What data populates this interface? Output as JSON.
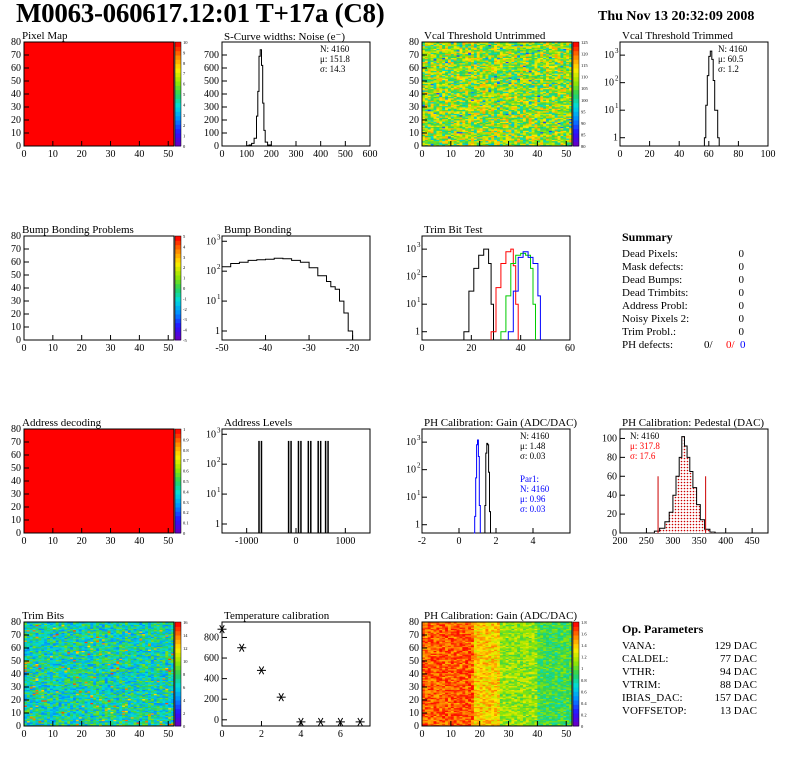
{
  "header": {
    "title": "M0063-060617.12:01 T+17a (C8)",
    "date": "Thu Nov 13 20:32:09 2008"
  },
  "summary": {
    "title": "Summary",
    "rows": [
      {
        "label": "Dead Pixels:",
        "value": "0"
      },
      {
        "label": "Mask defects:",
        "value": "0"
      },
      {
        "label": "Dead Bumps:",
        "value": "0"
      },
      {
        "label": "Dead Trimbits:",
        "value": "0"
      },
      {
        "label": "Address Probl:",
        "value": "0"
      },
      {
        "label": "Noisy Pixels 2:",
        "value": "0"
      },
      {
        "label": "Trim Probl.:",
        "value": "0"
      }
    ],
    "ph_row": {
      "label": "PH defects:",
      "values": [
        {
          "text": "0/",
          "color": "#000000"
        },
        {
          "text": "0/",
          "color": "#ff0000"
        },
        {
          "text": "0",
          "color": "#0000ff"
        }
      ]
    }
  },
  "op_params": {
    "title": "Op. Parameters",
    "rows": [
      {
        "label": "VANA:",
        "value": "129 DAC"
      },
      {
        "label": "CALDEL:",
        "value": "77 DAC"
      },
      {
        "label": "VTHR:",
        "value": "94 DAC"
      },
      {
        "label": "VTRIM:",
        "value": "88 DAC"
      },
      {
        "label": "IBIAS_DAC:",
        "value": "157 DAC"
      },
      {
        "label": "VOFFSETOP:",
        "value": "13 DAC"
      }
    ]
  },
  "chart_data": [
    {
      "id": "pixel-map",
      "title": "Pixel Map",
      "type": "heatmap",
      "pattern": "uniform",
      "fill": "#ff0000",
      "xlim": [
        0,
        52
      ],
      "ylim": [
        0,
        80
      ],
      "xticks": [
        0,
        10,
        20,
        30,
        40,
        50
      ],
      "yticks": [
        0,
        10,
        20,
        30,
        40,
        50,
        60,
        70,
        80
      ],
      "zticks": [
        "0",
        "1",
        "2",
        "3",
        "4",
        "5",
        "6",
        "7",
        "8",
        "9",
        "10"
      ]
    },
    {
      "id": "scurve-noise",
      "title": "S-Curve widths: Noise (e⁻)",
      "type": "histogram",
      "xlim": [
        0,
        600
      ],
      "ylim": [
        0,
        800
      ],
      "xticks": [
        0,
        100,
        200,
        300,
        400,
        500,
        600
      ],
      "yticks": [
        0,
        100,
        200,
        300,
        400,
        500,
        600,
        700
      ],
      "stats": [
        {
          "text": "N: 4160"
        },
        {
          "text": "μ:  151.8"
        },
        {
          "text": "σ:  14.3"
        }
      ],
      "series": [
        {
          "color": "#000000",
          "points": [
            [
              90,
              0
            ],
            [
              100,
              3
            ],
            [
              110,
              8
            ],
            [
              120,
              20
            ],
            [
              130,
              60
            ],
            [
              140,
              230
            ],
            [
              145,
              420
            ],
            [
              150,
              690
            ],
            [
              155,
              740
            ],
            [
              160,
              620
            ],
            [
              165,
              330
            ],
            [
              170,
              120
            ],
            [
              175,
              30
            ],
            [
              185,
              8
            ],
            [
              200,
              0
            ]
          ]
        }
      ]
    },
    {
      "id": "vcal-untrimmed",
      "title": "Vcal Threshold Untrimmed",
      "type": "heatmap",
      "pattern": "threshold",
      "xlim": [
        0,
        52
      ],
      "ylim": [
        0,
        80
      ],
      "xticks": [
        0,
        10,
        20,
        30,
        40,
        50
      ],
      "yticks": [
        0,
        10,
        20,
        30,
        40,
        50,
        60,
        70,
        80
      ],
      "zticks": [
        "80",
        "85",
        "90",
        "95",
        "100",
        "105",
        "110",
        "115",
        "120",
        "125"
      ]
    },
    {
      "id": "vcal-trimmed",
      "title": "Vcal Threshold Trimmed",
      "type": "histogram",
      "log": true,
      "xlim": [
        0,
        100
      ],
      "ylim": [
        0.5,
        3000
      ],
      "xticks": [
        0,
        20,
        40,
        60,
        80,
        100
      ],
      "yticks": [
        1,
        10,
        100,
        1000
      ],
      "stats": [
        {
          "text": "N: 4160"
        },
        {
          "text": "μ:  60.5"
        },
        {
          "text": "σ:  1.2"
        }
      ],
      "series": [
        {
          "color": "#000000",
          "points": [
            [
              55,
              0.5
            ],
            [
              57,
              1
            ],
            [
              58,
              15
            ],
            [
              59,
              180
            ],
            [
              60,
              900
            ],
            [
              61,
              1400
            ],
            [
              62,
              700
            ],
            [
              63,
              120
            ],
            [
              64,
              10
            ],
            [
              66,
              1
            ],
            [
              67,
              0.5
            ]
          ]
        }
      ]
    },
    {
      "id": "bump-problems",
      "title": "Bump Bonding Problems",
      "type": "heatmap",
      "pattern": "empty",
      "xlim": [
        0,
        52
      ],
      "ylim": [
        0,
        80
      ],
      "xticks": [
        0,
        10,
        20,
        30,
        40,
        50
      ],
      "yticks": [
        0,
        10,
        20,
        30,
        40,
        50,
        60,
        70,
        80
      ],
      "zticks": [
        "-5",
        "-4",
        "-3",
        "-2",
        "-1",
        "0",
        "1",
        "2",
        "3",
        "4",
        "5"
      ]
    },
    {
      "id": "bump-bonding",
      "title": "Bump Bonding",
      "type": "histogram",
      "log": true,
      "xlim": [
        -50,
        -16
      ],
      "ylim": [
        0.5,
        1500
      ],
      "xticks": [
        -50,
        -40,
        -30,
        -20
      ],
      "yticks": [
        1,
        10,
        100,
        1000
      ],
      "series": [
        {
          "color": "#000000",
          "points": [
            [
              -50,
              140
            ],
            [
              -48,
              180
            ],
            [
              -46,
              200
            ],
            [
              -44,
              230
            ],
            [
              -42,
              240
            ],
            [
              -40,
              250
            ],
            [
              -38,
              270
            ],
            [
              -36,
              260
            ],
            [
              -34,
              230
            ],
            [
              -32,
              200
            ],
            [
              -30,
              130
            ],
            [
              -28,
              70
            ],
            [
              -26,
              45
            ],
            [
              -25,
              30
            ],
            [
              -24,
              25
            ],
            [
              -23,
              10
            ],
            [
              -22,
              4
            ],
            [
              -21,
              1
            ],
            [
              -20,
              0.5
            ]
          ]
        }
      ]
    },
    {
      "id": "trim-bit-test",
      "title": "Trim Bit Test",
      "type": "histogram",
      "log": true,
      "xlim": [
        0,
        60
      ],
      "ylim": [
        0.5,
        3000
      ],
      "xticks": [
        0,
        20,
        40,
        60
      ],
      "yticks": [
        1,
        10,
        100,
        1000
      ],
      "series": [
        {
          "color": "#000000",
          "points": [
            [
              17,
              1
            ],
            [
              19,
              30
            ],
            [
              21,
              200
            ],
            [
              23,
              600
            ],
            [
              25,
              1000
            ],
            [
              27,
              300
            ],
            [
              28,
              10
            ],
            [
              29,
              1
            ]
          ]
        },
        {
          "color": "#ff0000",
          "points": [
            [
              28,
              1
            ],
            [
              30,
              40
            ],
            [
              32,
              300
            ],
            [
              34,
              800
            ],
            [
              36,
              1000
            ],
            [
              37,
              250
            ],
            [
              38,
              10
            ],
            [
              39,
              1
            ]
          ]
        },
        {
          "color": "#00cc00",
          "points": [
            [
              32,
              1
            ],
            [
              34,
              20
            ],
            [
              36,
              300
            ],
            [
              38,
              600
            ],
            [
              40,
              700
            ],
            [
              42,
              600
            ],
            [
              44,
              200
            ],
            [
              45,
              10
            ],
            [
              46,
              1
            ]
          ]
        },
        {
          "color": "#0000ff",
          "points": [
            [
              35,
              1
            ],
            [
              37,
              30
            ],
            [
              39,
              500
            ],
            [
              41,
              800
            ],
            [
              43,
              500
            ],
            [
              45,
              300
            ],
            [
              47,
              20
            ],
            [
              48,
              1
            ]
          ]
        }
      ]
    },
    {
      "id": "address-decoding",
      "title": "Address decoding",
      "type": "heatmap",
      "pattern": "uniform",
      "fill": "#ff0000",
      "xlim": [
        0,
        52
      ],
      "ylim": [
        0,
        80
      ],
      "xticks": [
        0,
        10,
        20,
        30,
        40,
        50
      ],
      "yticks": [
        0,
        10,
        20,
        30,
        40,
        50,
        60,
        70,
        80
      ],
      "zticks": [
        "0",
        "0.1",
        "0.2",
        "0.3",
        "0.4",
        "0.5",
        "0.6",
        "0.7",
        "0.8",
        "0.9",
        "1"
      ]
    },
    {
      "id": "address-levels",
      "title": "Address Levels",
      "type": "histogram",
      "log": true,
      "xlim": [
        -1500,
        1500
      ],
      "ylim": [
        0.5,
        1500
      ],
      "xticks": [
        -1000,
        0,
        1000
      ],
      "yticks": [
        1,
        10,
        100,
        1000
      ],
      "spikes": [
        -750,
        -700,
        -150,
        -100,
        50,
        100,
        250,
        300,
        450,
        500,
        600,
        650
      ],
      "spike_height": 600,
      "series": []
    },
    {
      "id": "ph-gain",
      "title": "PH Calibration: Gain (ADC/DAC)",
      "type": "histogram",
      "log": true,
      "xlim": [
        -2,
        6
      ],
      "ylim": [
        0.5,
        3000
      ],
      "xticks": [
        -2,
        0,
        2,
        4
      ],
      "yticks": [
        1,
        10,
        100,
        1000
      ],
      "stats": [
        {
          "text": "N: 4160"
        },
        {
          "text": "μ:  1.48"
        },
        {
          "text": "σ:  0.03"
        }
      ],
      "stats2": [
        {
          "text": "Par1:",
          "color": "#0000ff"
        },
        {
          "text": "N: 4160",
          "color": "#0000ff"
        },
        {
          "text": "μ:  0.96",
          "color": "#0000ff"
        },
        {
          "text": "σ:  0.03",
          "color": "#0000ff"
        }
      ],
      "series": [
        {
          "color": "#0000ff",
          "points": [
            [
              0.8,
              0.5
            ],
            [
              0.85,
              2
            ],
            [
              0.9,
              50
            ],
            [
              0.95,
              800
            ],
            [
              1.0,
              1200
            ],
            [
              1.05,
              300
            ],
            [
              1.1,
              5
            ],
            [
              1.15,
              0.5
            ]
          ]
        },
        {
          "color": "#000000",
          "points": [
            [
              1.35,
              0.5
            ],
            [
              1.4,
              5
            ],
            [
              1.45,
              400
            ],
            [
              1.5,
              900
            ],
            [
              1.55,
              800
            ],
            [
              1.6,
              80
            ],
            [
              1.65,
              3
            ],
            [
              1.7,
              0.5
            ]
          ]
        }
      ]
    },
    {
      "id": "ph-pedestal",
      "title": "PH Calibration: Pedestal (DAC)",
      "type": "histogram",
      "xlim": [
        200,
        480
      ],
      "ylim": [
        0,
        110
      ],
      "xticks": [
        200,
        250,
        300,
        350,
        400,
        450
      ],
      "yticks": [
        0,
        20,
        40,
        60,
        80,
        100
      ],
      "stats": [
        {
          "text": "N: 4160",
          "color": "#000000"
        },
        {
          "text": "μ:  317.8",
          "color": "#ff0000"
        },
        {
          "text": "σ:  17.6",
          "color": "#ff0000"
        }
      ],
      "fit_lines": [
        272,
        362
      ],
      "series": [
        {
          "color": "#000000",
          "hatch": "#cc0000",
          "points": [
            [
              255,
              0
            ],
            [
              265,
              2
            ],
            [
              275,
              5
            ],
            [
              285,
              12
            ],
            [
              293,
              22
            ],
            [
              300,
              40
            ],
            [
              306,
              60
            ],
            [
              312,
              80
            ],
            [
              317,
              102
            ],
            [
              322,
              92
            ],
            [
              327,
              80
            ],
            [
              332,
              65
            ],
            [
              338,
              48
            ],
            [
              345,
              30
            ],
            [
              352,
              14
            ],
            [
              360,
              4
            ],
            [
              370,
              1
            ],
            [
              380,
              0
            ]
          ]
        }
      ]
    },
    {
      "id": "trim-bits",
      "title": "Trim Bits",
      "type": "heatmap",
      "pattern": "trim",
      "xlim": [
        0,
        52
      ],
      "ylim": [
        0,
        80
      ],
      "xticks": [
        0,
        10,
        20,
        30,
        40,
        50
      ],
      "yticks": [
        0,
        10,
        20,
        30,
        40,
        50,
        60,
        70,
        80
      ],
      "zticks": [
        "0",
        "2",
        "4",
        "6",
        "8",
        "10",
        "12",
        "14",
        "16"
      ]
    },
    {
      "id": "temperature-calibration",
      "title": "Temperature calibration",
      "type": "scatter",
      "xlim": [
        0,
        7.5
      ],
      "ylim": [
        -60,
        950
      ],
      "xticks": [
        0,
        2,
        4,
        6
      ],
      "yticks": [
        0,
        200,
        400,
        600,
        800
      ],
      "points": [
        [
          0,
          880
        ],
        [
          1,
          700
        ],
        [
          2,
          480
        ],
        [
          3,
          220
        ],
        [
          4,
          -20
        ],
        [
          5,
          -20
        ],
        [
          6,
          -20
        ],
        [
          7,
          -20
        ]
      ]
    },
    {
      "id": "ph-gain-map",
      "title": "PH Calibration: Gain (ADC/DAC)",
      "type": "heatmap",
      "pattern": "gain",
      "xlim": [
        0,
        52
      ],
      "ylim": [
        0,
        80
      ],
      "xticks": [
        0,
        10,
        20,
        30,
        40,
        50
      ],
      "yticks": [
        0,
        10,
        20,
        30,
        40,
        50,
        60,
        70,
        80
      ],
      "zticks": [
        "0",
        "0.2",
        "0.4",
        "0.6",
        "0.8",
        "1",
        "1.2",
        "1.4",
        "1.6",
        "1.8"
      ]
    }
  ]
}
